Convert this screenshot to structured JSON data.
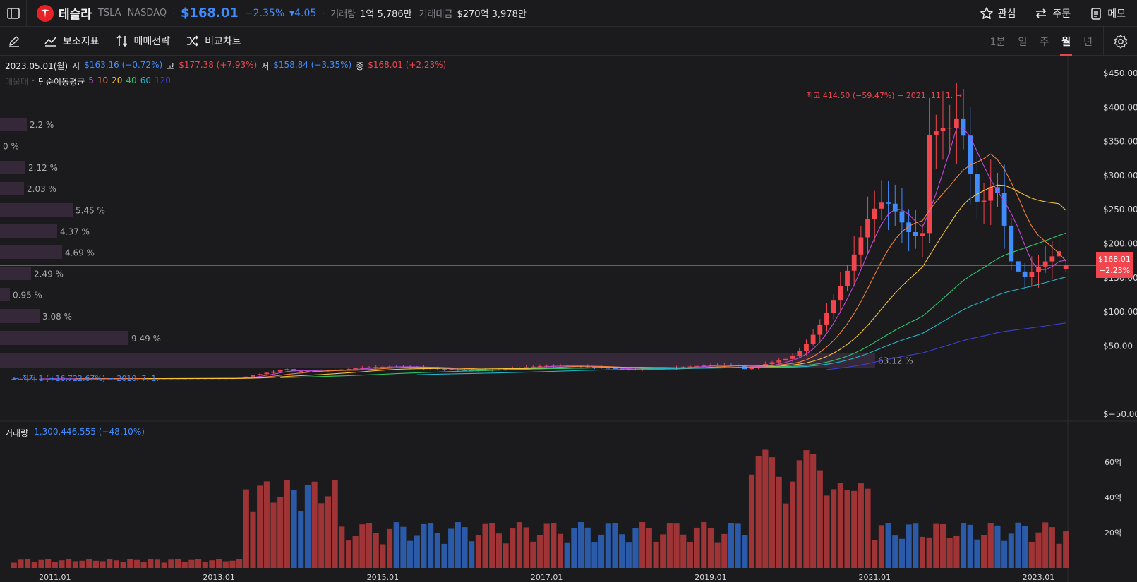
{
  "header": {
    "name": "테슬라",
    "ticker": "TSLA",
    "exchange": "NASDAQ",
    "price": "$168.01",
    "change_pct": "−2.35%",
    "change_abs": "▾4.05",
    "volume_label": "거래량",
    "volume_value": "1억 5,786만",
    "amount_label": "거래대금",
    "amount_value": "$270억 3,978만",
    "actions": {
      "watch": "관심",
      "order": "주문",
      "memo": "메모"
    }
  },
  "toolbar": {
    "indicators": "보조지표",
    "strategy": "매매전략",
    "compare": "비교차트",
    "periods": [
      "1분",
      "일",
      "주",
      "월",
      "년"
    ],
    "active_period": "월"
  },
  "ohlc": {
    "date": "2023.05.01(월)",
    "open_label": "시",
    "open": "$163.16 (−0.72%)",
    "high_label": "고",
    "high": "$177.38 (+7.93%)",
    "low_label": "저",
    "low": "$158.84 (−3.35%)",
    "close_label": "종",
    "close": "$168.01 (+2.23%)"
  },
  "ma_legend": {
    "dim_label": "매물대",
    "title": "단순이동평균",
    "periods": [
      "5",
      "10",
      "20",
      "40",
      "60",
      "120"
    ],
    "colors": [
      "#c04ad8",
      "#f2803a",
      "#f5c23a",
      "#2fc46b",
      "#22b5c8",
      "#3a40d0"
    ]
  },
  "price_tag": {
    "price": "$168.01",
    "change": "+2.23%"
  },
  "annotations": {
    "high": "최고 414.50 (−59.47%) − 2021. 11. 1. →",
    "low": "← 최저 1 (+16,722.67%) − 2010. 7. 1."
  },
  "volume_legend": {
    "label": "거래량",
    "value": "1,300,446,555 (−48.10%)"
  },
  "colors": {
    "up": "#f2454e",
    "down": "#3f8cff",
    "up_vol": "#9e3435",
    "down_vol": "#2a5aa8"
  },
  "chart_data": {
    "type": "candlestick",
    "interval": "monthly",
    "y_axis_labels": [
      "$450.00",
      "$400.00",
      "$350.00",
      "$300.00",
      "$250.00",
      "$200.00",
      "$150.00",
      "$100.00",
      "$50.00",
      "$−50.00"
    ],
    "x_axis_labels": [
      "2011.01",
      "2013.01",
      "2015.01",
      "2017.01",
      "2019.01",
      "2021.01",
      "2023.01"
    ],
    "volume_axis_labels": [
      "60억",
      "40억",
      "20억"
    ],
    "volume_profile_pct": [
      "2.2 %",
      "0 %",
      "2.12 %",
      "2.03 %",
      "5.45 %",
      "4.37 %",
      "4.69 %",
      "2.49 %",
      "0.95 %",
      "3.08 %",
      "9.49 %",
      "63.12 %"
    ],
    "volume_profile_values": [
      2.2,
      0,
      2.12,
      2.03,
      5.45,
      4.37,
      4.69,
      2.49,
      0.95,
      3.08,
      9.49,
      63.12
    ],
    "ylim": [
      -50,
      460
    ],
    "volume_ylim": [
      0,
      72
    ],
    "sample_closes": [
      [
        "2019-06",
        15
      ],
      [
        "2019-12",
        28
      ],
      [
        "2020-03",
        35
      ],
      [
        "2020-06",
        72
      ],
      [
        "2020-08",
        166
      ],
      [
        "2020-12",
        235
      ],
      [
        "2021-01",
        264
      ],
      [
        "2021-06",
        226
      ],
      [
        "2021-10",
        371
      ],
      [
        "2021-11",
        381
      ],
      [
        "2022-03",
        359
      ],
      [
        "2022-06",
        224
      ],
      [
        "2022-09",
        265
      ],
      [
        "2022-12",
        123
      ],
      [
        "2023-01",
        173
      ],
      [
        "2023-03",
        207
      ],
      [
        "2023-05",
        168
      ]
    ]
  }
}
